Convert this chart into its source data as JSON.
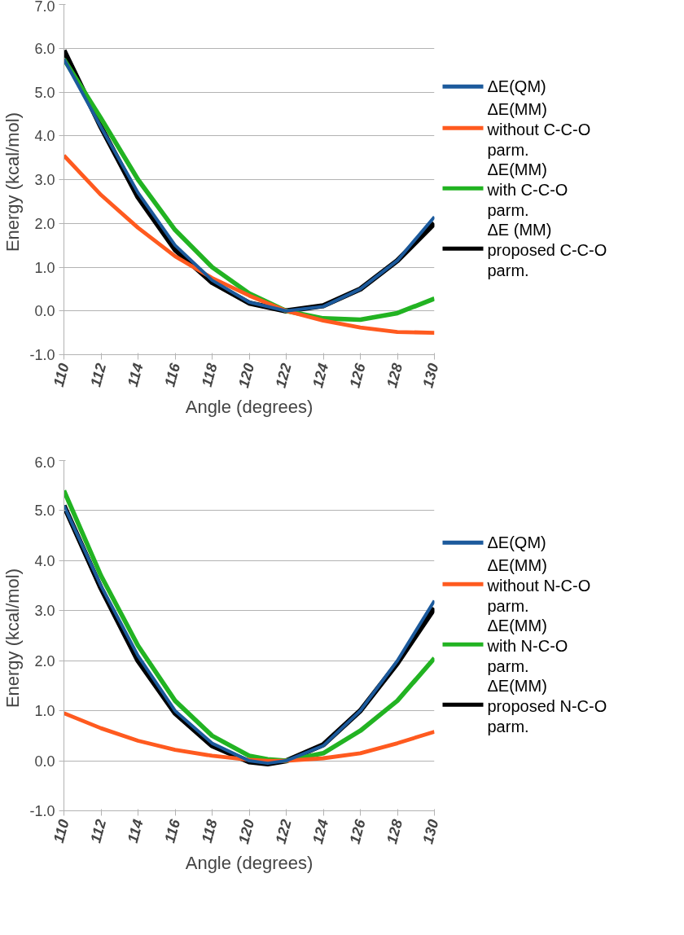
{
  "chart_data": [
    {
      "type": "line",
      "xlabel": "Angle (degrees)",
      "ylabel": "Energy  (kcal/mol)",
      "x": [
        110,
        112,
        114,
        116,
        118,
        120,
        122,
        124,
        126,
        128,
        130
      ],
      "xlim": [
        110,
        130
      ],
      "xticks": [
        110,
        112,
        114,
        116,
        118,
        120,
        122,
        124,
        126,
        128,
        130
      ],
      "ylim": [
        -1,
        7
      ],
      "yticks": [
        {
          "value": -1,
          "label": "-1.0"
        },
        {
          "value": 0,
          "label": "0.0"
        },
        {
          "value": 1,
          "label": "1.0"
        },
        {
          "value": 2,
          "label": "2.0"
        },
        {
          "value": 3,
          "label": "3.0"
        },
        {
          "value": 4,
          "label": "4.0"
        },
        {
          "value": 5,
          "label": "5.0"
        },
        {
          "value": 6,
          "label": "6.0"
        },
        {
          "value": 7,
          "label": "7.0"
        }
      ],
      "grid": "y",
      "legend": "right",
      "marker": "none",
      "line_style": "solid",
      "series": [
        {
          "name": "ΔE(QM)",
          "color": "#1c5a9c",
          "values": [
            5.75,
            4.2,
            2.7,
            1.5,
            0.7,
            0.2,
            0.0,
            0.1,
            0.5,
            1.15,
            2.15
          ]
        },
        {
          "name": "ΔE(MM) without C-C-O parm.",
          "color": "#ff5a1f",
          "values": [
            3.55,
            2.65,
            1.9,
            1.25,
            0.75,
            0.35,
            0.0,
            -0.22,
            -0.38,
            -0.48,
            -0.5
          ]
        },
        {
          "name": "ΔE(MM) with C-C-O parm.",
          "color": "#22b322",
          "values": [
            5.75,
            4.4,
            3.0,
            1.85,
            1.0,
            0.4,
            0.0,
            -0.17,
            -0.2,
            -0.05,
            0.28
          ]
        },
        {
          "name": "ΔE (MM) proposed C-C-O parm.",
          "color": "#000000",
          "values": [
            5.95,
            4.2,
            2.6,
            1.4,
            0.65,
            0.18,
            0.0,
            0.12,
            0.5,
            1.15,
            2.0
          ]
        }
      ]
    },
    {
      "type": "line",
      "xlabel": "Angle (degrees)",
      "ylabel": "Energy  (kcal/mol)",
      "x": [
        110,
        112,
        114,
        116,
        118,
        120,
        121,
        122,
        124,
        126,
        128,
        130
      ],
      "xlim": [
        110,
        130
      ],
      "xticks": [
        110,
        112,
        114,
        116,
        118,
        120,
        122,
        124,
        126,
        128,
        130
      ],
      "ylim": [
        -1,
        6
      ],
      "yticks": [
        {
          "value": -1,
          "label": "-1.0"
        },
        {
          "value": 0,
          "label": "0.0"
        },
        {
          "value": 1,
          "label": "1.0"
        },
        {
          "value": 2,
          "label": "2.0"
        },
        {
          "value": 3,
          "label": "3.0"
        },
        {
          "value": 4,
          "label": "4.0"
        },
        {
          "value": 5,
          "label": "5.0"
        },
        {
          "value": 6,
          "label": "6.0"
        }
      ],
      "grid": "y",
      "legend": "right",
      "marker": "none",
      "line_style": "solid",
      "series": [
        {
          "name": "ΔE(QM)",
          "color": "#1c5a9c",
          "values": [
            5.1,
            3.5,
            2.1,
            1.0,
            0.35,
            0.0,
            -0.05,
            0.0,
            0.3,
            1.0,
            2.0,
            3.2
          ]
        },
        {
          "name": "ΔE(MM) without N-C-O parm.",
          "color": "#ff5a1f",
          "values": [
            0.95,
            0.65,
            0.4,
            0.22,
            0.1,
            0.02,
            0.0,
            0.0,
            0.05,
            0.15,
            0.35,
            0.58
          ]
        },
        {
          "name": "ΔE(MM) with N-C-O parm.",
          "color": "#22b322",
          "values": [
            5.4,
            3.7,
            2.3,
            1.2,
            0.5,
            0.1,
            0.03,
            0.0,
            0.15,
            0.6,
            1.2,
            2.05
          ]
        },
        {
          "name": "ΔE(MM) proposed N-C-O parm.",
          "color": "#000000",
          "values": [
            5.1,
            3.45,
            2.0,
            0.95,
            0.3,
            -0.02,
            -0.06,
            0.0,
            0.32,
            1.0,
            1.95,
            3.05
          ]
        }
      ]
    }
  ]
}
